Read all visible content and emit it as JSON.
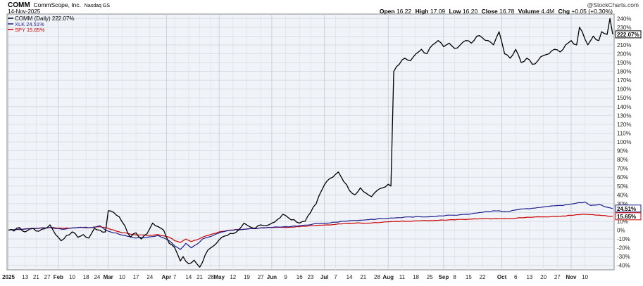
{
  "header": {
    "symbol": "COMM",
    "company": "CommScope, Inc.",
    "exchange": "Nasdaq GS",
    "date": "14-Nov-2025",
    "watermark": "@StockCharts.com",
    "ohlc": {
      "open_label": "Open",
      "open": "16.22",
      "high_label": "High",
      "high": "17.09",
      "low_label": "Low",
      "low": "16.20",
      "close_label": "Close",
      "close": "16.78",
      "volume_label": "Volume",
      "volume": "4.4M",
      "chg_label": "Chg",
      "chg": "+0.05 (+0.30%)"
    }
  },
  "chart_data": {
    "type": "line",
    "ylim": [
      -45,
      245
    ],
    "y_ticks": [
      -40,
      -30,
      -20,
      -10,
      0,
      10,
      20,
      30,
      40,
      50,
      60,
      70,
      80,
      90,
      100,
      110,
      120,
      130,
      140,
      150,
      160,
      170,
      180,
      190,
      200,
      210,
      220,
      230,
      240
    ],
    "grid": true,
    "legend_position": "top-left",
    "x_ticks": [
      {
        "i": 0,
        "label": "2025",
        "bold": true
      },
      {
        "i": 6,
        "label": "13"
      },
      {
        "i": 10,
        "label": "21"
      },
      {
        "i": 14,
        "label": "27"
      },
      {
        "i": 18,
        "label": "Feb",
        "bold": true
      },
      {
        "i": 23,
        "label": "10"
      },
      {
        "i": 28,
        "label": "18"
      },
      {
        "i": 32,
        "label": "24"
      },
      {
        "i": 36,
        "label": "Mar",
        "bold": true
      },
      {
        "i": 41,
        "label": "10"
      },
      {
        "i": 46,
        "label": "17"
      },
      {
        "i": 51,
        "label": "24"
      },
      {
        "i": 57,
        "label": "Apr",
        "bold": true
      },
      {
        "i": 60,
        "label": "7"
      },
      {
        "i": 65,
        "label": "14"
      },
      {
        "i": 69,
        "label": "21"
      },
      {
        "i": 73,
        "label": "28"
      },
      {
        "i": 76,
        "label": "May",
        "bold": true
      },
      {
        "i": 81,
        "label": "12"
      },
      {
        "i": 86,
        "label": "19"
      },
      {
        "i": 91,
        "label": "27"
      },
      {
        "i": 95,
        "label": "Jun",
        "bold": true
      },
      {
        "i": 100,
        "label": "9"
      },
      {
        "i": 105,
        "label": "16"
      },
      {
        "i": 109,
        "label": "23"
      },
      {
        "i": 114,
        "label": "Jul",
        "bold": true
      },
      {
        "i": 118,
        "label": "7"
      },
      {
        "i": 123,
        "label": "14"
      },
      {
        "i": 128,
        "label": "21"
      },
      {
        "i": 133,
        "label": "28"
      },
      {
        "i": 137,
        "label": "Aug",
        "bold": true
      },
      {
        "i": 142,
        "label": "11"
      },
      {
        "i": 147,
        "label": "18"
      },
      {
        "i": 152,
        "label": "25"
      },
      {
        "i": 157,
        "label": "Sep",
        "bold": true
      },
      {
        "i": 161,
        "label": "8"
      },
      {
        "i": 166,
        "label": "15"
      },
      {
        "i": 171,
        "label": "22"
      },
      {
        "i": 178,
        "label": "Oct",
        "bold": true
      },
      {
        "i": 183,
        "label": "6"
      },
      {
        "i": 188,
        "label": "13"
      },
      {
        "i": 193,
        "label": "20"
      },
      {
        "i": 198,
        "label": "27"
      },
      {
        "i": 203,
        "label": "Nov",
        "bold": true
      },
      {
        "i": 208,
        "label": "10"
      }
    ],
    "n_points": 219,
    "series": [
      {
        "name": "COMM (Daily) 222.07%",
        "color": "#000000",
        "end_label": "222.07%",
        "keypoints": [
          [
            0,
            0
          ],
          [
            2,
            -1
          ],
          [
            4,
            3
          ],
          [
            6,
            -2
          ],
          [
            8,
            2
          ],
          [
            10,
            -1
          ],
          [
            12,
            1
          ],
          [
            14,
            3
          ],
          [
            15,
            6
          ],
          [
            17,
            -5
          ],
          [
            19,
            -12
          ],
          [
            21,
            -6
          ],
          [
            23,
            -2
          ],
          [
            25,
            -8
          ],
          [
            27,
            -5
          ],
          [
            29,
            -9
          ],
          [
            31,
            2
          ],
          [
            33,
            0
          ],
          [
            35,
            -2
          ],
          [
            36,
            22
          ],
          [
            38,
            20
          ],
          [
            40,
            15
          ],
          [
            42,
            5
          ],
          [
            44,
            -8
          ],
          [
            46,
            -3
          ],
          [
            48,
            -10
          ],
          [
            50,
            -4
          ],
          [
            52,
            8
          ],
          [
            54,
            4
          ],
          [
            56,
            0
          ],
          [
            58,
            -15
          ],
          [
            60,
            -20
          ],
          [
            62,
            -35
          ],
          [
            63,
            -30
          ],
          [
            65,
            -38
          ],
          [
            67,
            -34
          ],
          [
            69,
            -42
          ],
          [
            71,
            -28
          ],
          [
            73,
            -20
          ],
          [
            75,
            -15
          ],
          [
            77,
            -8
          ],
          [
            79,
            -6
          ],
          [
            81,
            -4
          ],
          [
            83,
            0
          ],
          [
            85,
            8
          ],
          [
            87,
            4
          ],
          [
            89,
            2
          ],
          [
            91,
            6
          ],
          [
            93,
            5
          ],
          [
            95,
            8
          ],
          [
            97,
            12
          ],
          [
            99,
            18
          ],
          [
            101,
            14
          ],
          [
            103,
            12
          ],
          [
            105,
            8
          ],
          [
            107,
            10
          ],
          [
            109,
            20
          ],
          [
            111,
            30
          ],
          [
            113,
            45
          ],
          [
            115,
            56
          ],
          [
            117,
            60
          ],
          [
            119,
            66
          ],
          [
            121,
            55
          ],
          [
            123,
            45
          ],
          [
            125,
            40
          ],
          [
            127,
            48
          ],
          [
            129,
            42
          ],
          [
            131,
            38
          ],
          [
            133,
            45
          ],
          [
            135,
            48
          ],
          [
            137,
            52
          ],
          [
            138,
            50
          ],
          [
            139,
            180
          ],
          [
            141,
            188
          ],
          [
            143,
            195
          ],
          [
            145,
            192
          ],
          [
            147,
            200
          ],
          [
            149,
            205
          ],
          [
            151,
            200
          ],
          [
            153,
            210
          ],
          [
            155,
            215
          ],
          [
            157,
            208
          ],
          [
            159,
            212
          ],
          [
            161,
            206
          ],
          [
            163,
            210
          ],
          [
            165,
            215
          ],
          [
            167,
            212
          ],
          [
            169,
            220
          ],
          [
            171,
            218
          ],
          [
            173,
            215
          ],
          [
            175,
            210
          ],
          [
            177,
            225
          ],
          [
            179,
            200
          ],
          [
            181,
            195
          ],
          [
            183,
            205
          ],
          [
            185,
            190
          ],
          [
            187,
            195
          ],
          [
            189,
            188
          ],
          [
            191,
            192
          ],
          [
            193,
            198
          ],
          [
            195,
            200
          ],
          [
            197,
            205
          ],
          [
            199,
            202
          ],
          [
            201,
            210
          ],
          [
            203,
            215
          ],
          [
            205,
            210
          ],
          [
            206,
            230
          ],
          [
            207,
            225
          ],
          [
            209,
            210
          ],
          [
            211,
            220
          ],
          [
            213,
            215
          ],
          [
            214,
            225
          ],
          [
            216,
            222
          ],
          [
            217,
            240
          ],
          [
            218,
            222
          ]
        ]
      },
      {
        "name": "XLK 24.51%",
        "color": "#1c1c8c",
        "end_label": "24.51%",
        "keypoints": [
          [
            0,
            0
          ],
          [
            5,
            1
          ],
          [
            10,
            2
          ],
          [
            15,
            3
          ],
          [
            20,
            1
          ],
          [
            25,
            3
          ],
          [
            30,
            3
          ],
          [
            33,
            5
          ],
          [
            35,
            0
          ],
          [
            38,
            -3
          ],
          [
            42,
            -6
          ],
          [
            46,
            -9
          ],
          [
            50,
            -8
          ],
          [
            54,
            -6
          ],
          [
            58,
            -12
          ],
          [
            60,
            -18
          ],
          [
            62,
            -22
          ],
          [
            64,
            -15
          ],
          [
            66,
            -20
          ],
          [
            68,
            -16
          ],
          [
            70,
            -10
          ],
          [
            72,
            -8
          ],
          [
            74,
            -6
          ],
          [
            76,
            -3
          ],
          [
            80,
            0
          ],
          [
            85,
            1
          ],
          [
            90,
            2
          ],
          [
            95,
            3
          ],
          [
            100,
            4
          ],
          [
            105,
            5
          ],
          [
            110,
            7
          ],
          [
            115,
            8
          ],
          [
            120,
            10
          ],
          [
            125,
            11
          ],
          [
            130,
            12
          ],
          [
            135,
            13
          ],
          [
            140,
            14
          ],
          [
            145,
            15
          ],
          [
            150,
            15
          ],
          [
            155,
            16
          ],
          [
            160,
            17
          ],
          [
            165,
            18
          ],
          [
            170,
            20
          ],
          [
            175,
            22
          ],
          [
            180,
            21
          ],
          [
            185,
            24
          ],
          [
            190,
            25
          ],
          [
            195,
            27
          ],
          [
            200,
            28
          ],
          [
            204,
            30
          ],
          [
            208,
            32
          ],
          [
            210,
            28
          ],
          [
            213,
            29
          ],
          [
            216,
            26
          ],
          [
            218,
            24.5
          ]
        ]
      },
      {
        "name": "SPY 15.65%",
        "color": "#cc0000",
        "end_label": "15.65%",
        "keypoints": [
          [
            0,
            0
          ],
          [
            5,
            1
          ],
          [
            10,
            2
          ],
          [
            15,
            3
          ],
          [
            20,
            2
          ],
          [
            25,
            3
          ],
          [
            30,
            3
          ],
          [
            33,
            4
          ],
          [
            36,
            2
          ],
          [
            40,
            -2
          ],
          [
            45,
            -5
          ],
          [
            50,
            -6
          ],
          [
            54,
            -5
          ],
          [
            58,
            -8
          ],
          [
            60,
            -12
          ],
          [
            62,
            -14
          ],
          [
            64,
            -10
          ],
          [
            66,
            -13
          ],
          [
            68,
            -11
          ],
          [
            70,
            -8
          ],
          [
            72,
            -6
          ],
          [
            74,
            -4
          ],
          [
            76,
            -2
          ],
          [
            80,
            0
          ],
          [
            85,
            1
          ],
          [
            90,
            2
          ],
          [
            95,
            3
          ],
          [
            100,
            3
          ],
          [
            105,
            4
          ],
          [
            110,
            5
          ],
          [
            115,
            6
          ],
          [
            120,
            7
          ],
          [
            125,
            8
          ],
          [
            130,
            8
          ],
          [
            135,
            9
          ],
          [
            140,
            10
          ],
          [
            145,
            10
          ],
          [
            150,
            11
          ],
          [
            155,
            11
          ],
          [
            160,
            12
          ],
          [
            165,
            12
          ],
          [
            170,
            13
          ],
          [
            175,
            13
          ],
          [
            180,
            13
          ],
          [
            185,
            14
          ],
          [
            190,
            15
          ],
          [
            195,
            15
          ],
          [
            200,
            16
          ],
          [
            204,
            17
          ],
          [
            208,
            18
          ],
          [
            212,
            17
          ],
          [
            216,
            16
          ],
          [
            218,
            15.7
          ]
        ]
      }
    ]
  }
}
